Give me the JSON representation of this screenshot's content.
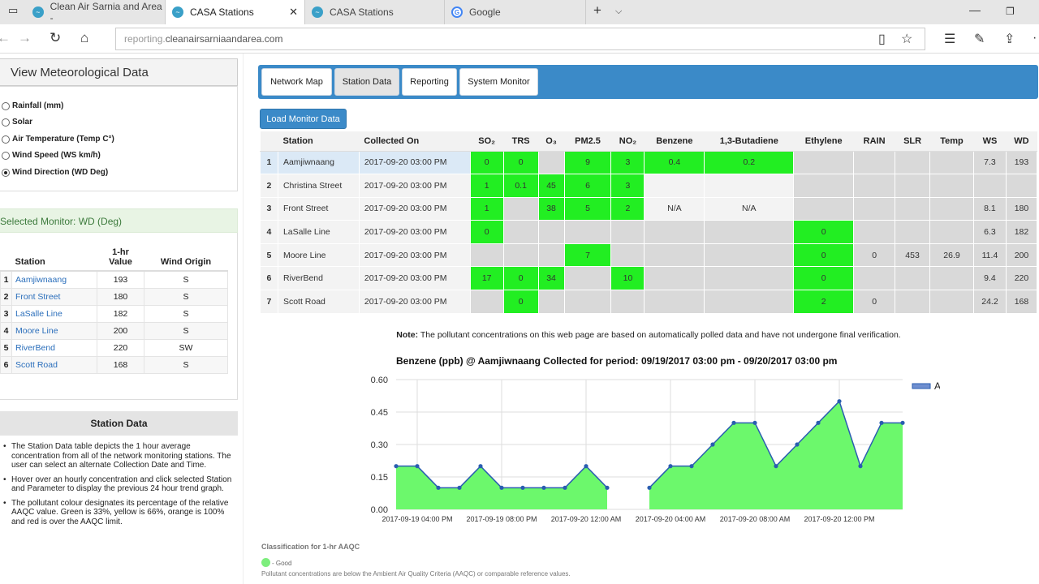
{
  "browser": {
    "tabs": [
      {
        "title": "Clean Air Sarnia and Area -",
        "active": false
      },
      {
        "title": "CASA Stations",
        "active": true
      },
      {
        "title": "CASA Stations",
        "active": false
      },
      {
        "title": "Google",
        "active": false
      }
    ],
    "url_prefix": "reporting.",
    "url_domain": "cleanairsarniaandarea.com"
  },
  "left": {
    "met_header": "View Meteorological Data",
    "met_options": [
      {
        "label": "Rainfall (mm)",
        "checked": false
      },
      {
        "label": "Solar",
        "checked": false
      },
      {
        "label": "Air Temperature (Temp C°)",
        "checked": false
      },
      {
        "label": "Wind Speed (WS km/h)",
        "checked": false
      },
      {
        "label": "Wind Direction (WD Deg)",
        "checked": true
      }
    ],
    "selected_monitor": "Selected Monitor: WD (Deg)",
    "monitor_headers": {
      "station": "Station",
      "value_1": "1-hr",
      "value_2": "Value",
      "origin": "Wind Origin"
    },
    "monitor_rows": [
      {
        "n": "1",
        "station": "Aamjiwnaang",
        "value": "193",
        "origin": "S"
      },
      {
        "n": "2",
        "station": "Front Street",
        "value": "180",
        "origin": "S"
      },
      {
        "n": "3",
        "station": "LaSalle Line",
        "value": "182",
        "origin": "S"
      },
      {
        "n": "4",
        "station": "Moore Line",
        "value": "200",
        "origin": "S"
      },
      {
        "n": "5",
        "station": "RiverBend",
        "value": "220",
        "origin": "SW"
      },
      {
        "n": "6",
        "station": "Scott Road",
        "value": "168",
        "origin": "S"
      }
    ],
    "station_data_header": "Station Data",
    "bullets": [
      "The Station Data table depicts the 1 hour average concentration from all of the network monitoring stations. The user can select an alternate Collection Date and Time.",
      "Hover over an hourly concentration and click selected Station and Parameter to display the previous 24 hour trend graph.",
      "The pollutant colour designates its percentage of the relative AAQC value. Green is 33%, yellow is 66%, orange is 100% and red is over the AAQC limit."
    ]
  },
  "right": {
    "tabs": [
      "Network Map",
      "Station Data",
      "Reporting",
      "System Monitor"
    ],
    "active_tab": "Station Data",
    "load_button": "Load Monitor Data",
    "table_headers": [
      "Station",
      "Collected On",
      "SO₂",
      "TRS",
      "O₃",
      "PM2.5",
      "NO₂",
      "Benzene",
      "1,3-Butadiene",
      "Ethylene",
      "RAIN",
      "SLR",
      "Temp",
      "WS",
      "WD"
    ],
    "rows": [
      {
        "n": "1",
        "station": "Aamjiwnaang",
        "date": "2017-09-20 03:00 PM",
        "so2": "0",
        "trs": "0",
        "o3": "",
        "pm25": "9",
        "no2": "3",
        "benzene": "0.4",
        "butadiene": "0.2",
        "ethylene": "",
        "rain": "",
        "slr": "",
        "temp": "",
        "ws": "7.3",
        "wd": "193"
      },
      {
        "n": "2",
        "station": "Christina Street",
        "date": "2017-09-20 03:00 PM",
        "so2": "1",
        "trs": "0.1",
        "o3": "45",
        "pm25": "6",
        "no2": "3",
        "benzene": "",
        "butadiene": "",
        "ethylene": "",
        "rain": "",
        "slr": "",
        "temp": "",
        "ws": "",
        "wd": ""
      },
      {
        "n": "3",
        "station": "Front Street",
        "date": "2017-09-20 03:00 PM",
        "so2": "1",
        "trs": "",
        "o3": "38",
        "pm25": "5",
        "no2": "2",
        "benzene": "N/A",
        "butadiene": "N/A",
        "ethylene": "",
        "rain": "",
        "slr": "",
        "temp": "",
        "ws": "8.1",
        "wd": "180"
      },
      {
        "n": "4",
        "station": "LaSalle Line",
        "date": "2017-09-20 03:00 PM",
        "so2": "0",
        "trs": "",
        "o3": "",
        "pm25": "",
        "no2": "",
        "benzene": "",
        "butadiene": "",
        "ethylene": "0",
        "rain": "",
        "slr": "",
        "temp": "",
        "ws": "6.3",
        "wd": "182"
      },
      {
        "n": "5",
        "station": "Moore Line",
        "date": "2017-09-20 03:00 PM",
        "so2": "",
        "trs": "",
        "o3": "",
        "pm25": "7",
        "no2": "",
        "benzene": "",
        "butadiene": "",
        "ethylene": "0",
        "rain": "0",
        "slr": "453",
        "temp": "26.9",
        "ws": "11.4",
        "wd": "200"
      },
      {
        "n": "6",
        "station": "RiverBend",
        "date": "2017-09-20 03:00 PM",
        "so2": "17",
        "trs": "0",
        "o3": "34",
        "pm25": "",
        "no2": "10",
        "benzene": "",
        "butadiene": "",
        "ethylene": "0",
        "rain": "",
        "slr": "",
        "temp": "",
        "ws": "9.4",
        "wd": "220"
      },
      {
        "n": "7",
        "station": "Scott Road",
        "date": "2017-09-20 03:00 PM",
        "so2": "",
        "trs": "0",
        "o3": "",
        "pm25": "",
        "no2": "",
        "benzene": "",
        "butadiene": "",
        "ethylene": "2",
        "rain": "0",
        "slr": "",
        "temp": "",
        "ws": "24.2",
        "wd": "168"
      }
    ],
    "green_cells": [
      [
        "so2",
        "trs",
        "pm25",
        "no2",
        "benzene",
        "butadiene"
      ],
      [
        "so2",
        "trs",
        "o3",
        "pm25",
        "no2"
      ],
      [
        "so2",
        "o3",
        "pm25",
        "no2"
      ],
      [
        "so2",
        "ethylene"
      ],
      [
        "pm25",
        "ethylene"
      ],
      [
        "so2",
        "trs",
        "o3",
        "no2",
        "ethylene"
      ],
      [
        "trs",
        "ethylene"
      ]
    ],
    "white_cells": [
      [],
      [
        "benzene",
        "butadiene"
      ],
      [
        "benzene",
        "butadiene"
      ],
      [],
      [],
      [],
      []
    ],
    "note_label": "Note:",
    "note_text": "The pollutant concentrations on this web page are based on automatically polled data and have not undergone final verification.",
    "classification_title": "Classification for 1-hr AAQC",
    "good_label": "- Good",
    "classification_note": "Pollutant concentrations are below the Ambient Air Quality Criteria (AAQC) or comparable reference values."
  },
  "colors": {
    "accent": "#3b8ac8",
    "good_green": "#22ee22",
    "chart_fill": "#6cf86c",
    "chart_line": "#2a5db0"
  },
  "chart_data": {
    "type": "area",
    "title": "Benzene (ppb) @ Aamjiwnaang Collected for period: 09/19/2017 03:00 pm - 09/20/2017 03:00 pm",
    "series": [
      {
        "name": "Aamjiwnaang",
        "values": [
          0.2,
          0.2,
          0.1,
          0.1,
          0.2,
          0.1,
          0.1,
          0.1,
          0.1,
          0.2,
          0.1,
          null,
          0.1,
          0.2,
          0.2,
          0.3,
          0.4,
          0.4,
          0.2,
          0.3,
          0.4,
          0.5,
          0.2,
          0.4,
          0.4
        ]
      }
    ],
    "x_tick_labels": [
      "2017-09-19 04:00 PM",
      "2017-09-19 08:00 PM",
      "2017-09-20 12:00 AM",
      "2017-09-20 04:00 AM",
      "2017-09-20 08:00 AM",
      "2017-09-20 12:00 PM"
    ],
    "y_tick_labels": [
      "0.00",
      "0.15",
      "0.30",
      "0.45",
      "0.60"
    ],
    "ylim": [
      0,
      0.6
    ],
    "legend": "right"
  }
}
